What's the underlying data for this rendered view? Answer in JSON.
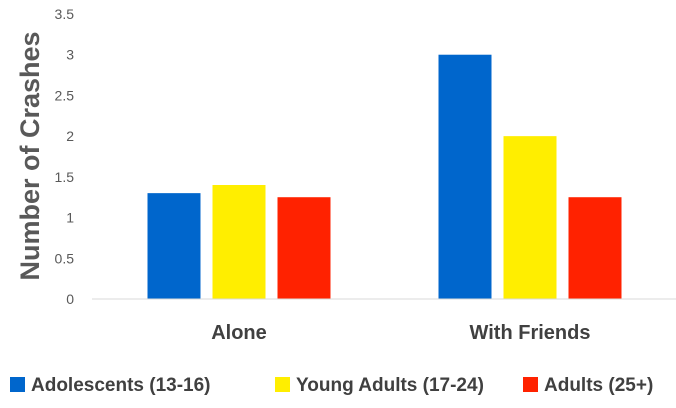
{
  "chart_data": {
    "type": "bar",
    "categories": [
      "Alone",
      "With Friends"
    ],
    "series": [
      {
        "name": "Adolescents (13-16)",
        "color": "#0066CC",
        "values": [
          1.3,
          3.0
        ]
      },
      {
        "name": "Young Adults (17-24)",
        "color": "#FFEE00",
        "values": [
          1.4,
          2.0
        ]
      },
      {
        "name": "Adults (25+)",
        "color": "#FF2200",
        "values": [
          1.25,
          1.25
        ]
      }
    ],
    "yticks": [
      "0",
      "0.5",
      "1",
      "1.5",
      "2",
      "2.5",
      "3",
      "3.5"
    ],
    "ylim": [
      0,
      3.5
    ],
    "ylabel": "Number of Crashes",
    "xlabel": "",
    "title": "",
    "grid": false,
    "legend_position": "bottom"
  }
}
